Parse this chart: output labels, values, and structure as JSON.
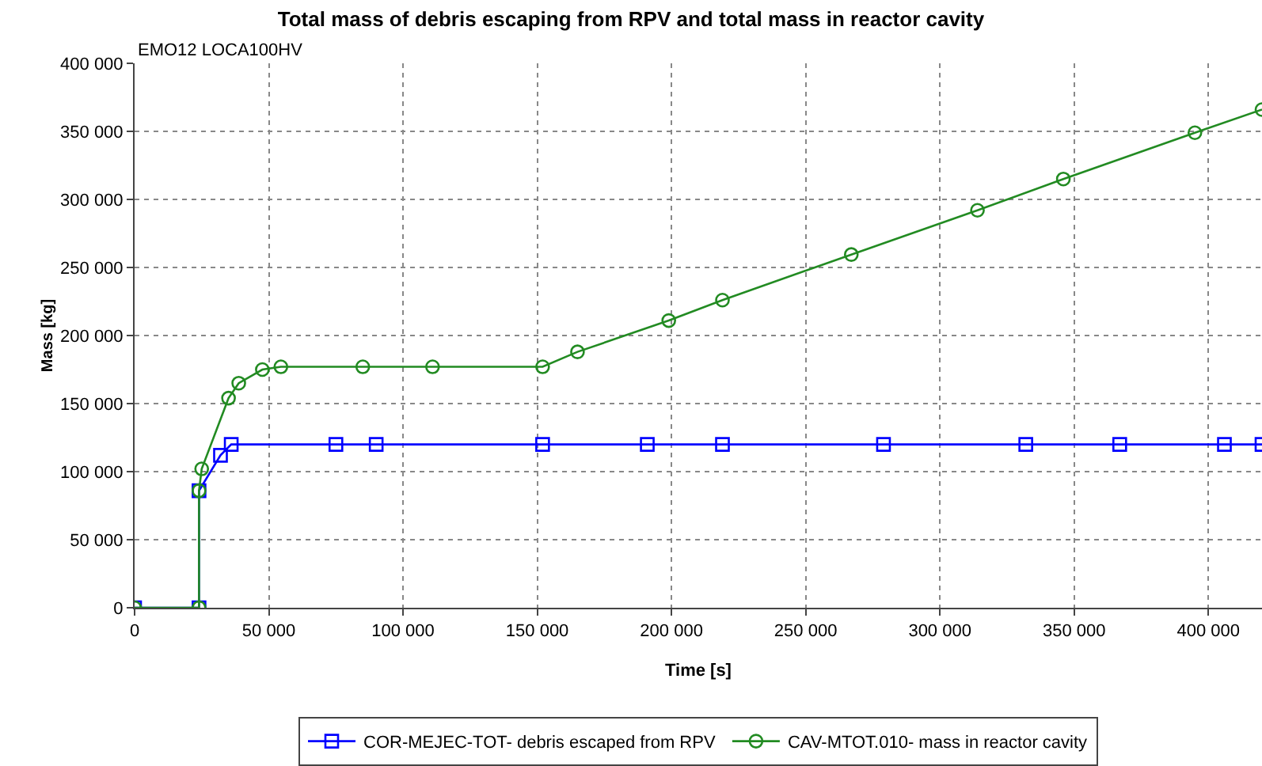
{
  "chart_data": {
    "type": "line",
    "title": "Total mass of debris escaping from RPV and total mass in reactor cavity",
    "xlabel": "Time [s]",
    "ylabel": "Mass [kg]",
    "annotations": [
      "EMO12 LOCA100HV"
    ],
    "series": [
      {
        "name": "COR-MEJEC-TOT- debris escaped from RPV",
        "color": "#0000ff",
        "marker": "square",
        "x": [
          0,
          24000,
          24000,
          32000,
          36000,
          75000,
          90000,
          152000,
          191000,
          219000,
          279000,
          332000,
          367000,
          406000,
          420000
        ],
        "values": [
          0,
          0,
          86000,
          112000,
          120000,
          120000,
          120000,
          120000,
          120000,
          120000,
          120000,
          120000,
          120000,
          120000,
          120000
        ]
      },
      {
        "name": "CAV-MTOT.010- mass in reactor cavity",
        "color": "#228b22",
        "marker": "circle",
        "x": [
          0,
          24000,
          24000,
          25000,
          35000,
          38800,
          47600,
          54500,
          85000,
          111000,
          152000,
          165000,
          199000,
          219000,
          267000,
          314000,
          346000,
          395000,
          420000
        ],
        "values": [
          0,
          0,
          86000,
          102000,
          154000,
          165000,
          175000,
          177000,
          177000,
          177000,
          177000,
          188000,
          211000,
          226000,
          259500,
          292000,
          315000,
          349000,
          366000
        ]
      }
    ],
    "xlim": [
      0,
      420000
    ],
    "ylim": [
      0,
      400000
    ],
    "xticks": [
      0,
      {
        "value": 50000,
        "label": "50 000"
      },
      {
        "value": 100000,
        "label": "100 000"
      },
      {
        "value": 150000,
        "label": "150 000"
      },
      {
        "value": 200000,
        "label": "200 000"
      },
      {
        "value": 250000,
        "label": "250 000"
      },
      {
        "value": 300000,
        "label": "300 000"
      },
      {
        "value": 350000,
        "label": "350 000"
      },
      {
        "value": 400000,
        "label": "400 000"
      }
    ],
    "yticks": [
      0,
      {
        "value": 50000,
        "label": "50 000"
      },
      {
        "value": 100000,
        "label": "100 000"
      },
      {
        "value": 150000,
        "label": "150 000"
      },
      {
        "value": 200000,
        "label": "200 000"
      },
      {
        "value": 250000,
        "label": "250 000"
      },
      {
        "value": 300000,
        "label": "300 000"
      },
      {
        "value": 350000,
        "label": "350 000"
      },
      {
        "value": 400000,
        "label": "400 000"
      }
    ],
    "grid": true,
    "legend": "bottom",
    "line_style": "solid"
  }
}
